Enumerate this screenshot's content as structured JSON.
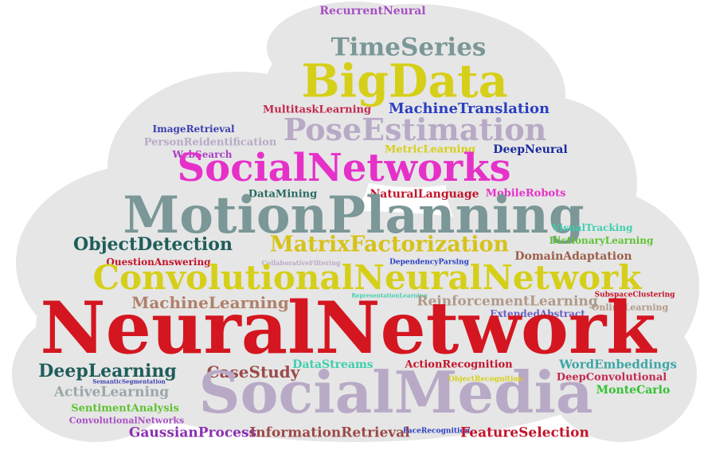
{
  "cloud": {
    "background_color": "#e6e6e6",
    "words": [
      {
        "text": "RecurrentNeural",
        "color": "#a54fc3"
      },
      {
        "text": "TimeSeries",
        "color": "#7b9797"
      },
      {
        "text": "BigData",
        "color": "#d6cf1a"
      },
      {
        "text": "MultitaskLearning",
        "color": "#c2294f"
      },
      {
        "text": "MachineTranslation",
        "color": "#2b3fc2"
      },
      {
        "text": "ImageRetrieval",
        "color": "#3b3fb0"
      },
      {
        "text": "PoseEstimation",
        "color": "#b8aac6"
      },
      {
        "text": "PersonReidentification",
        "color": "#b8aac6"
      },
      {
        "text": "WebSearch",
        "color": "#a83fc2"
      },
      {
        "text": "MetricLearning",
        "color": "#d6cf1a"
      },
      {
        "text": "DeepNeural",
        "color": "#1a2a9c"
      },
      {
        "text": "SocialNetworks",
        "color": "#e631c9"
      },
      {
        "text": "DataMining",
        "color": "#2a6b62"
      },
      {
        "text": "NaturalLanguage",
        "color": "#c2142a"
      },
      {
        "text": "MobileRobots",
        "color": "#e631c9"
      },
      {
        "text": "MotionPlanning",
        "color": "#7b9797"
      },
      {
        "text": "VisualTracking",
        "color": "#3fcfae"
      },
      {
        "text": "ObjectDetection",
        "color": "#1f5d5a"
      },
      {
        "text": "MatrixFactorization",
        "color": "#d6c21a"
      },
      {
        "text": "DictionaryLearning",
        "color": "#5fc233"
      },
      {
        "text": "QuestionAnswering",
        "color": "#c2142a"
      },
      {
        "text": "CollaborativeFiltering",
        "color": "#b8aac6"
      },
      {
        "text": "DependencyParsing",
        "color": "#2b3fc2"
      },
      {
        "text": "DomainAdaptation",
        "color": "#9c5f4a"
      },
      {
        "text": "ConvolutionalNeuralNetwork",
        "color": "#d6cf1a"
      },
      {
        "text": "MachineLearning",
        "color": "#b0806a"
      },
      {
        "text": "RepresentationLearning",
        "color": "#3fcfae"
      },
      {
        "text": "ReinforcementLearning",
        "color": "#b09a8a"
      },
      {
        "text": "SubspaceClustering",
        "color": "#c2142a"
      },
      {
        "text": "ExtendedAbstract",
        "color": "#6a5fc2"
      },
      {
        "text": "OnlineLearning",
        "color": "#b09a8a"
      },
      {
        "text": "NeuralNetwork",
        "color": "#d41620"
      },
      {
        "text": "DeepLearning",
        "color": "#1f5d5a"
      },
      {
        "text": "CaseStudy",
        "color": "#9c4a4a"
      },
      {
        "text": "DataStreams",
        "color": "#3fcfae"
      },
      {
        "text": "ActionRecognition",
        "color": "#c2142a"
      },
      {
        "text": "WordEmbeddings",
        "color": "#3fa6a6"
      },
      {
        "text": "SemanticSegmentation",
        "color": "#3b3fb0"
      },
      {
        "text": "DeepConvolutional",
        "color": "#c2294f"
      },
      {
        "text": "ActiveLearning",
        "color": "#9aa6aa"
      },
      {
        "text": "SocialMedia",
        "color": "#b8aac6"
      },
      {
        "text": "ObjectRecognition",
        "color": "#d6cf1a"
      },
      {
        "text": "MonteCarlo",
        "color": "#33c233"
      },
      {
        "text": "SentimentAnalysis",
        "color": "#5fc233"
      },
      {
        "text": "ConvolutionalNetworks",
        "color": "#a54fc3"
      },
      {
        "text": "GaussianProcess",
        "color": "#8a2fb0"
      },
      {
        "text": "InformationRetrieval",
        "color": "#9c4a4a"
      },
      {
        "text": "FaceRecognition",
        "color": "#2b3fc2"
      },
      {
        "text": "FeatureSelection",
        "color": "#c2142a"
      }
    ]
  }
}
